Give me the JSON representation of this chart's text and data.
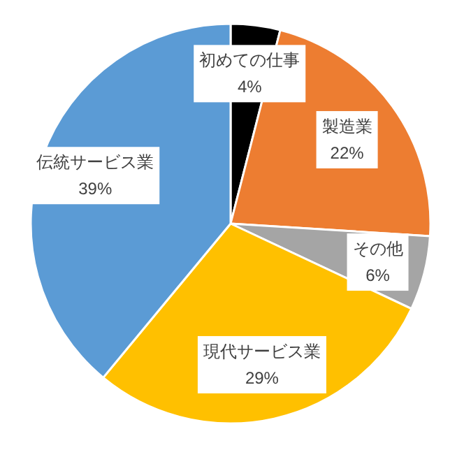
{
  "chart_data": {
    "type": "pie",
    "categories": [
      "初めての仕事",
      "製造業",
      "その他",
      "現代サービス業",
      "伝統サービス業"
    ],
    "values": [
      4,
      22,
      6,
      29,
      39
    ],
    "value_labels": [
      "4%",
      "22%",
      "6%",
      "29%",
      "39%"
    ],
    "colors": [
      "#000000",
      "#ed7d31",
      "#a5a5a5",
      "#ffc000",
      "#5b9bd5"
    ]
  }
}
